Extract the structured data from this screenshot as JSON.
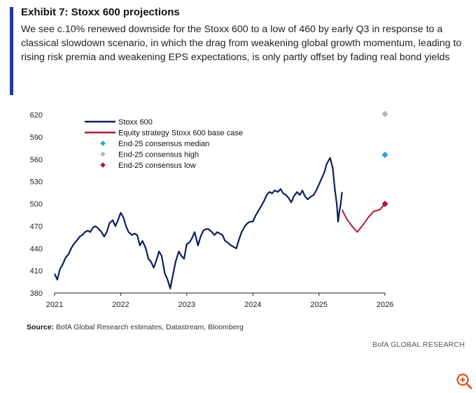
{
  "header": {
    "title": "Exhibit 7: Stoxx 600 projections",
    "subtitle": "We see c.10% renewed downside for the Stoxx 600 to a low of 460 by early Q3 in response to a classical slowdown scenario, in which the drag from weakening global growth momentum, leading to rising risk premia and weakening EPS expectations, is only partly offset by fading real bond yields"
  },
  "footer": {
    "source_label": "Source:",
    "source_text": " BofA Global Research estimates, Datastream, Bloomberg",
    "brand": "BofA GLOBAL RESEARCH"
  },
  "colors": {
    "accent_bar": "#1f3d99",
    "stoxx": "#0b1f5c",
    "base_case": "#b0183a",
    "median": "#2aa3d8",
    "high": "#b5b5b5",
    "low": "#b0183a",
    "zoom": "#e05a2b"
  },
  "icons": {
    "zoom": "zoom-in-icon"
  },
  "chart_data": {
    "type": "line",
    "title": "",
    "xlabel": "",
    "ylabel": "",
    "xlim": [
      2021,
      2026
    ],
    "ylim": [
      380,
      620
    ],
    "x_ticks": [
      "2021",
      "2022",
      "2023",
      "2024",
      "2025",
      "2026"
    ],
    "y_ticks": [
      "380",
      "410",
      "440",
      "470",
      "500",
      "530",
      "560",
      "590",
      "620"
    ],
    "series": [
      {
        "name": "Stoxx 600",
        "type": "line",
        "x": [
          2021.0,
          2021.04,
          2021.08,
          2021.12,
          2021.17,
          2021.21,
          2021.25,
          2021.29,
          2021.33,
          2021.38,
          2021.42,
          2021.46,
          2021.5,
          2021.54,
          2021.58,
          2021.62,
          2021.67,
          2021.71,
          2021.75,
          2021.79,
          2021.83,
          2021.88,
          2021.92,
          2021.96,
          2022.0,
          2022.04,
          2022.08,
          2022.12,
          2022.17,
          2022.21,
          2022.25,
          2022.29,
          2022.33,
          2022.38,
          2022.42,
          2022.46,
          2022.5,
          2022.54,
          2022.58,
          2022.62,
          2022.67,
          2022.71,
          2022.75,
          2022.79,
          2022.83,
          2022.88,
          2022.92,
          2022.96,
          2023.0,
          2023.04,
          2023.08,
          2023.12,
          2023.17,
          2023.21,
          2023.25,
          2023.29,
          2023.33,
          2023.38,
          2023.42,
          2023.46,
          2023.5,
          2023.54,
          2023.58,
          2023.62,
          2023.67,
          2023.71,
          2023.75,
          2023.79,
          2023.83,
          2023.88,
          2023.92,
          2023.96,
          2024.0,
          2024.04,
          2024.08,
          2024.12,
          2024.17,
          2024.21,
          2024.25,
          2024.29,
          2024.33,
          2024.38,
          2024.42,
          2024.46,
          2024.5,
          2024.54,
          2024.58,
          2024.62,
          2024.67,
          2024.71,
          2024.75,
          2024.79,
          2024.83,
          2024.88,
          2024.92,
          2024.96,
          2025.0,
          2025.04,
          2025.08,
          2025.12,
          2025.17,
          2025.21,
          2025.24,
          2025.27,
          2025.29,
          2025.31,
          2025.33,
          2025.35
        ],
        "values": [
          406,
          398,
          412,
          418,
          428,
          432,
          440,
          446,
          450,
          456,
          458,
          462,
          464,
          462,
          468,
          470,
          466,
          462,
          456,
          462,
          474,
          478,
          470,
          478,
          488,
          482,
          470,
          462,
          458,
          460,
          458,
          444,
          450,
          440,
          426,
          422,
          414,
          424,
          436,
          430,
          406,
          398,
          386,
          404,
          422,
          436,
          430,
          426,
          446,
          448,
          454,
          462,
          444,
          456,
          464,
          466,
          466,
          462,
          458,
          462,
          460,
          458,
          450,
          448,
          444,
          442,
          440,
          452,
          462,
          470,
          474,
          476,
          476,
          484,
          490,
          496,
          504,
          512,
          516,
          514,
          518,
          516,
          520,
          514,
          512,
          508,
          502,
          510,
          516,
          512,
          518,
          510,
          506,
          510,
          512,
          518,
          526,
          534,
          542,
          554,
          562,
          548,
          520,
          500,
          476,
          490,
          500,
          516
        ]
      },
      {
        "name": "Equity strategy Stoxx 600 base case",
        "type": "line",
        "x": [
          2025.35,
          2025.42,
          2025.5,
          2025.58,
          2025.67,
          2025.75,
          2025.83,
          2025.92,
          2026.0
        ],
        "values": [
          492,
          480,
          470,
          462,
          472,
          482,
          490,
          492,
          500
        ]
      },
      {
        "name": "End-25 consensus median",
        "type": "point",
        "x": [
          2026.0
        ],
        "values": [
          566
        ]
      },
      {
        "name": "End-25 consensus high",
        "type": "point",
        "x": [
          2026.0
        ],
        "values": [
          621
        ]
      },
      {
        "name": "End-25 consensus low",
        "type": "point",
        "x": [
          2026.0
        ],
        "values": [
          500
        ]
      }
    ],
    "legend_position": "top-left",
    "grid": false
  }
}
